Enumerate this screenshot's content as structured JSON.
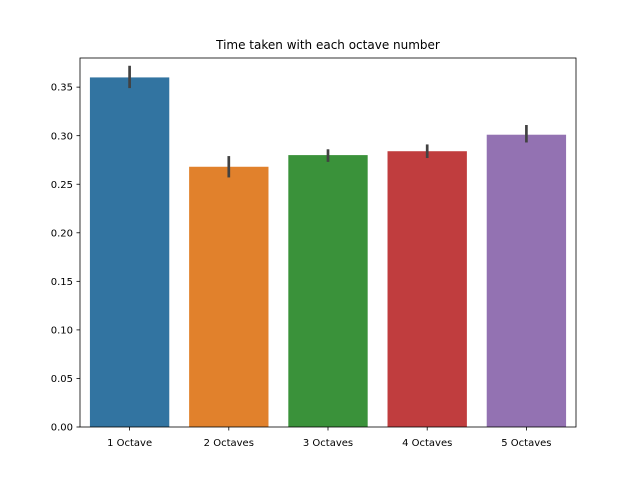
{
  "chart_data": {
    "type": "bar",
    "title": "Time taken with each octave number",
    "xlabel": "",
    "ylabel": "",
    "categories": [
      "1 Octave",
      "2 Octaves",
      "3 Octaves",
      "4 Octaves",
      "5 Octaves"
    ],
    "values": [
      0.36,
      0.268,
      0.28,
      0.284,
      0.301
    ],
    "error_bars": [
      [
        0.349,
        0.372
      ],
      [
        0.257,
        0.279
      ],
      [
        0.273,
        0.286
      ],
      [
        0.277,
        0.291
      ],
      [
        0.293,
        0.311
      ]
    ],
    "colors": [
      "#3274a1",
      "#e1812c",
      "#3a923a",
      "#c03d3e",
      "#9372b2"
    ],
    "error_color": "#424242",
    "ylim": [
      0,
      0.38
    ],
    "yticks": [
      0.0,
      0.05,
      0.1,
      0.15,
      0.2,
      0.25,
      0.3,
      0.35
    ],
    "ytick_labels": [
      "0.00",
      "0.05",
      "0.10",
      "0.15",
      "0.20",
      "0.25",
      "0.30",
      "0.35"
    ],
    "grid": false,
    "legend": "none"
  }
}
